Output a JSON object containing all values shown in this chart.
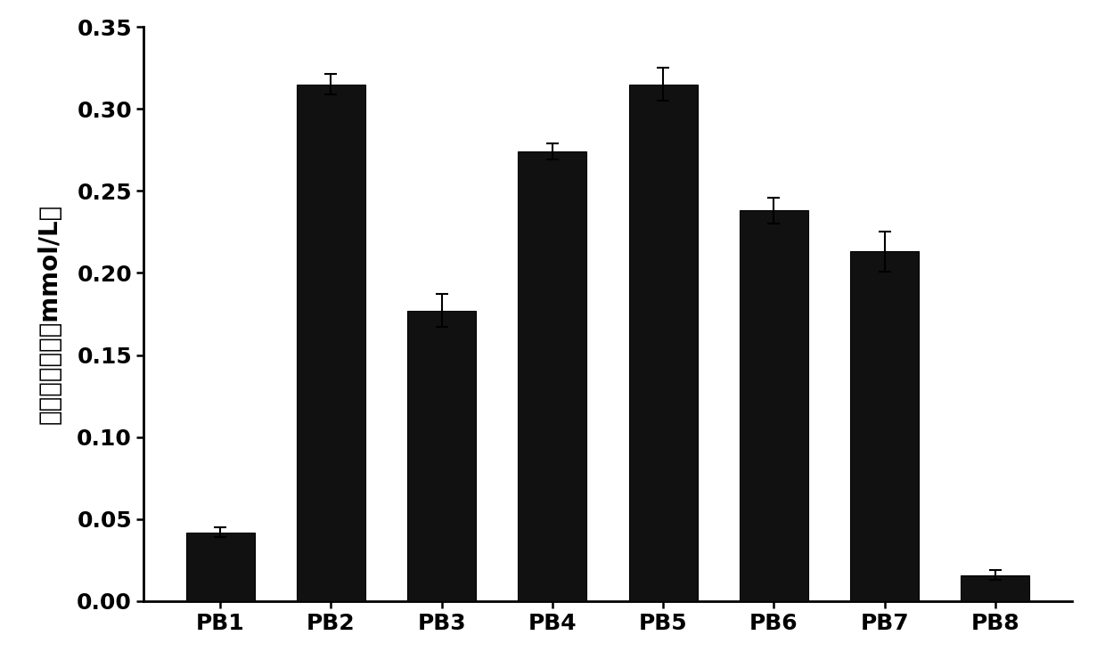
{
  "categories": [
    "PB1",
    "PB2",
    "PB3",
    "PB4",
    "PB5",
    "PB6",
    "PB7",
    "PB8"
  ],
  "values": [
    0.042,
    0.315,
    0.177,
    0.274,
    0.315,
    0.238,
    0.213,
    0.016
  ],
  "errors": [
    0.003,
    0.006,
    0.01,
    0.005,
    0.01,
    0.008,
    0.012,
    0.003
  ],
  "bar_color": "#111111",
  "edge_color": "#000000",
  "background_color": "#ffffff",
  "ylabel": "总抗氧化能力（mmol/L）",
  "ylim": [
    0,
    0.35
  ],
  "yticks": [
    0.0,
    0.05,
    0.1,
    0.15,
    0.2,
    0.25,
    0.3,
    0.35
  ],
  "bar_width": 0.62,
  "ylabel_fontsize": 20,
  "tick_fontsize": 18,
  "xtick_fontsize": 18
}
